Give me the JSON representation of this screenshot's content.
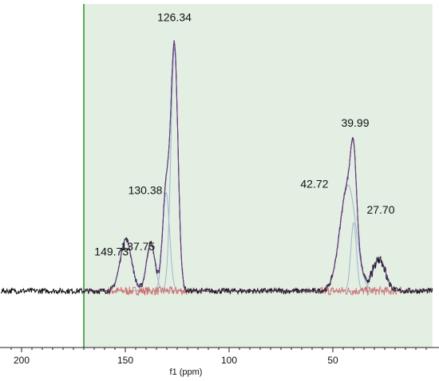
{
  "chart_data": {
    "type": "line",
    "title": "",
    "xlabel": "f1 (ppm)",
    "ylabel": "",
    "x_direction": "reversed",
    "xlim": [
      210,
      2
    ],
    "ylim": [
      -0.15,
      1.05
    ],
    "x_ticks": [
      200,
      150,
      100,
      50
    ],
    "x_tick_labels": [
      "200",
      "150",
      "100",
      "50"
    ],
    "highlight_region": {
      "from": 170,
      "to": 2,
      "color": "#e3efe3",
      "border": "#339933"
    },
    "peak_labels": [
      {
        "text": "126.34",
        "x": 126.34,
        "y": 0.96
      },
      {
        "text": "130.38",
        "x": 130.38,
        "y": 0.38
      },
      {
        "text": "137.75",
        "x": 137.75,
        "y": 0.18
      },
      {
        "text": "149.73",
        "x": 149.73,
        "y": 0.16
      },
      {
        "text": "39.99",
        "x": 39.99,
        "y": 0.6
      },
      {
        "text": "42.72",
        "x": 42.72,
        "y": 0.37
      },
      {
        "text": "27.70",
        "x": 27.7,
        "y": 0.28
      }
    ],
    "components": [
      {
        "center": 149.73,
        "height": 0.205,
        "width": 3.2
      },
      {
        "center": 137.75,
        "height": 0.19,
        "width": 2.4
      },
      {
        "center": 130.38,
        "height": 0.39,
        "width": 2.0
      },
      {
        "center": 126.34,
        "height": 0.96,
        "width": 2.0
      },
      {
        "center": 42.72,
        "height": 0.42,
        "width": 4.5
      },
      {
        "center": 39.99,
        "height": 0.27,
        "width": 1.6
      },
      {
        "center": 27.7,
        "height": 0.13,
        "width": 3.5
      }
    ],
    "series": [
      {
        "role": "experimental",
        "color": "#111111"
      },
      {
        "role": "fit",
        "color": "#6a3a8a"
      },
      {
        "role": "components",
        "color": "#9fb4cc"
      },
      {
        "role": "residual",
        "color": "#d06a6a"
      }
    ],
    "grid": false
  }
}
